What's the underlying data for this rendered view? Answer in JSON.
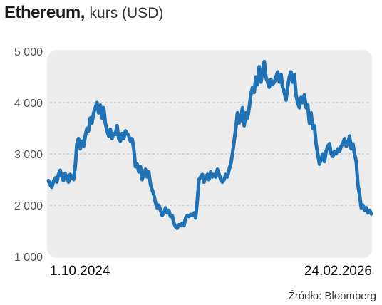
{
  "header": {
    "title": "Ethereum,",
    "subtitle": "kurs (USD)"
  },
  "footer": {
    "source": "Źródło: Bloomberg"
  },
  "colors": {
    "line": "#1f72b5",
    "plot_bg": "#ececec",
    "grid": "#bdbdbd"
  },
  "chart_data": {
    "type": "line",
    "title": "Ethereum, kurs (USD)",
    "xlabel": "",
    "ylabel": "",
    "ylim": [
      1000,
      5000
    ],
    "yticks": [
      1000,
      2000,
      3000,
      4000,
      5000
    ],
    "ytick_labels": [
      "1 000",
      "2 000",
      "3 000",
      "4 000",
      "5 000"
    ],
    "x_start_label": "1.10.2024",
    "x_end_label": "24.02.2026",
    "grid": true,
    "series": [
      {
        "values": [
          2480,
          2400,
          2350,
          2460,
          2530,
          2450,
          2600,
          2680,
          2560,
          2480,
          2620,
          2530,
          2450,
          2600,
          2540,
          2500,
          2750,
          3200,
          3300,
          3100,
          3250,
          3150,
          3350,
          3500,
          3450,
          3700,
          3600,
          3800,
          3900,
          4000,
          3800,
          3950,
          3700,
          3900,
          3600,
          3450,
          3350,
          3480,
          3300,
          3400,
          3380,
          3550,
          3300,
          3250,
          3400,
          3300,
          3450,
          3400,
          3350,
          3250,
          3300,
          3100,
          2750,
          2800,
          2650,
          2750,
          2500,
          2600,
          2700,
          2550,
          2650,
          2400,
          2300,
          2200,
          2050,
          1950,
          2000,
          1900,
          1800,
          1850,
          1950,
          1850,
          1900,
          1780,
          1800,
          1650,
          1580,
          1550,
          1620,
          1600,
          1650,
          1600,
          1750,
          1800,
          1780,
          1820,
          1800,
          1850,
          1750,
          2100,
          2500,
          2550,
          2600,
          2450,
          2550,
          2600,
          2500,
          2650,
          2550,
          2600,
          2550,
          2700,
          2600,
          2500,
          2450,
          2500,
          2600,
          2550,
          2700,
          2800,
          3000,
          3250,
          3500,
          3800,
          3600,
          3700,
          3900,
          3550,
          3800,
          3700,
          3900,
          4150,
          4300,
          4200,
          4500,
          4350,
          4700,
          4400,
          4600,
          4800,
          4500,
          4400,
          4300,
          4450,
          4350,
          4400,
          4500,
          4600,
          4400,
          4550,
          4300,
          4200,
          4050,
          4300,
          4500,
          4600,
          4400,
          4550,
          4150,
          4000,
          3900,
          4100,
          4000,
          4150,
          3900,
          3950,
          3600,
          3800,
          3500,
          3550,
          3200,
          3000,
          2800,
          2900,
          3000,
          2850,
          3050,
          3150,
          3200,
          3000,
          2950,
          3050,
          3000,
          3100,
          3050,
          3150,
          3200,
          3300,
          3150,
          3200,
          3350,
          3100,
          3200,
          3000,
          2850,
          2400,
          2200,
          1950,
          2000,
          1900,
          1950,
          1850,
          1900,
          1830
        ]
      }
    ]
  }
}
